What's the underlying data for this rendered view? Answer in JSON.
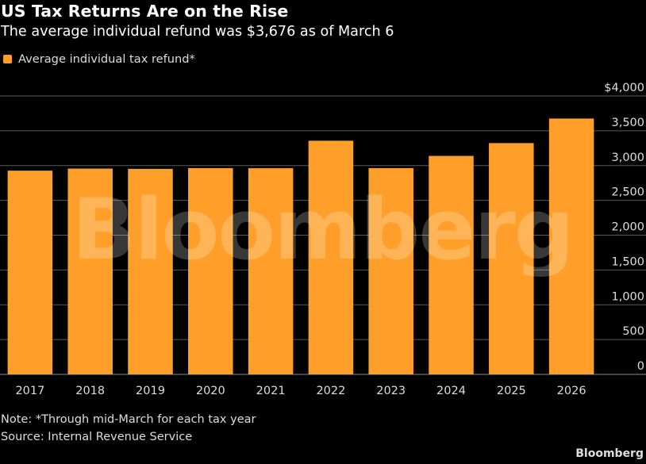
{
  "title": "US Tax Returns Are on the Rise",
  "subtitle": "The average individual refund was $3,676 as of March 6",
  "legend": {
    "label": "Average individual tax refund*",
    "color": "#ff9f2a"
  },
  "watermark": "Bloomberg",
  "chart_data": {
    "type": "bar",
    "title": "US Tax Returns Are on the Rise",
    "subtitle": "The average individual refund was $3,676 as of March 6",
    "xlabel": "",
    "ylabel": "",
    "ylim": [
      0,
      4000
    ],
    "yticks": [
      0,
      500,
      1000,
      1500,
      2000,
      2500,
      3000,
      3500,
      4000
    ],
    "ytick_labels": [
      "0",
      "500",
      "1,000",
      "1,500",
      "2,000",
      "2,500",
      "3,000",
      "3,500",
      "$4,000"
    ],
    "grid": true,
    "legend_position": "top-left",
    "categories": [
      "2017",
      "2018",
      "2019",
      "2020",
      "2021",
      "2022",
      "2023",
      "2024",
      "2025",
      "2026"
    ],
    "series": [
      {
        "name": "Average individual tax refund*",
        "color": "#ff9f2a",
        "values": [
          2927,
          2957,
          2953,
          2963,
          2962,
          3357,
          2963,
          3139,
          3323,
          3676
        ]
      }
    ]
  },
  "note": "Note: *Through mid-March for each tax year",
  "source": "Source: Internal Revenue Service",
  "brand": "Bloomberg"
}
